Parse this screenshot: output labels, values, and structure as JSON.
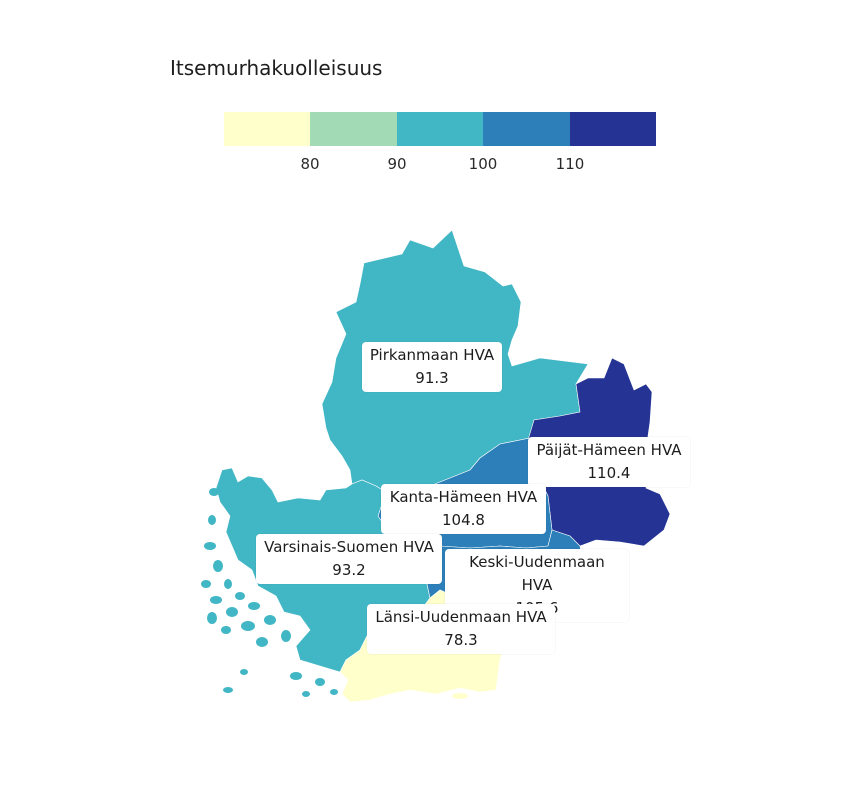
{
  "legend": {
    "title": "Itsemurhakuolleisuus",
    "colors": [
      "#ffffcc",
      "#a1dab4",
      "#41b6c4",
      "#2c7fb8",
      "#253494"
    ],
    "ticks": [
      "80",
      "90",
      "100",
      "110"
    ]
  },
  "regions": [
    {
      "name": "Pirkanmaan HVA",
      "value": "91.3",
      "color": "#41b6c4"
    },
    {
      "name": "Päijät-Hämeen HVA",
      "value": "110.4",
      "color": "#253494"
    },
    {
      "name": "Kanta-Hämeen HVA",
      "value": "104.8",
      "color": "#2c7fb8"
    },
    {
      "name": "Varsinais-Suomen HVA",
      "value": "93.2",
      "color": "#41b6c4"
    },
    {
      "name": "Keski-Uudenmaan HVA",
      "value": "105.6",
      "color": "#2c7fb8"
    },
    {
      "name": "Länsi-Uudenmaan HVA",
      "value": "78.3",
      "color": "#ffffcc"
    }
  ]
}
